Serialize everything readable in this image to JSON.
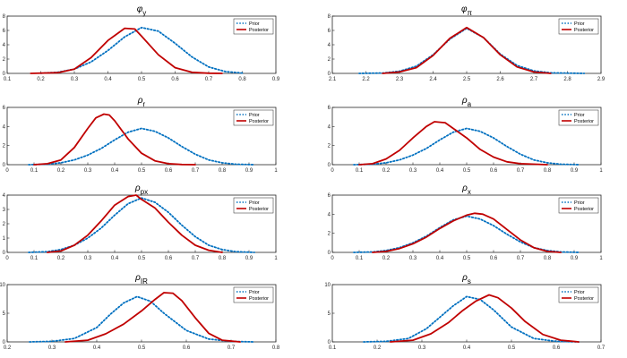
{
  "legend_labels": {
    "prior": "Prior",
    "posterior": "Posterior"
  },
  "colors": {
    "prior": "#0070c0",
    "posterior": "#c00000",
    "axis": "#262626",
    "background": "#ffffff"
  },
  "chart_data": [
    {
      "type": "line",
      "title": "φy",
      "title_main": "φ",
      "title_sub": "y",
      "xlim": [
        0.1,
        0.9
      ],
      "xticks": [
        "0.1",
        "0.2",
        "0.3",
        "0.4",
        "0.5",
        "0.6",
        "0.7",
        "0.8",
        "0.9"
      ],
      "ylim": [
        0,
        8
      ],
      "yticks": [
        "0",
        "2",
        "4",
        "6",
        "8"
      ],
      "legend_position": "top-right",
      "grid": false,
      "series": [
        {
          "name": "Prior",
          "style": "dotted",
          "x": [
            0.2,
            0.25,
            0.3,
            0.35,
            0.4,
            0.45,
            0.5,
            0.55,
            0.6,
            0.65,
            0.7,
            0.75,
            0.8
          ],
          "y": [
            0.02,
            0.15,
            0.6,
            1.6,
            3.2,
            5.1,
            6.4,
            5.9,
            4.2,
            2.3,
            0.9,
            0.25,
            0.05
          ]
        },
        {
          "name": "Posterior",
          "style": "solid",
          "x": [
            0.17,
            0.25,
            0.3,
            0.35,
            0.4,
            0.45,
            0.48,
            0.5,
            0.55,
            0.6,
            0.65,
            0.7,
            0.74
          ],
          "y": [
            0.0,
            0.1,
            0.6,
            2.2,
            4.6,
            6.3,
            6.2,
            5.2,
            2.6,
            0.8,
            0.15,
            0.03,
            0.0
          ]
        }
      ]
    },
    {
      "type": "line",
      "title": "φπ",
      "title_main": "φ",
      "title_sub": "π",
      "xlim": [
        2.1,
        2.9
      ],
      "xticks": [
        "2.1",
        "2.2",
        "2.3",
        "2.4",
        "2.5",
        "2.6",
        "2.7",
        "2.8",
        "2.9"
      ],
      "ylim": [
        0,
        8
      ],
      "yticks": [
        "0",
        "2",
        "4",
        "6",
        "8"
      ],
      "legend_position": "top-right",
      "grid": false,
      "series": [
        {
          "name": "Prior",
          "style": "dotted",
          "x": [
            2.18,
            2.25,
            2.3,
            2.35,
            2.4,
            2.45,
            2.5,
            2.55,
            2.6,
            2.65,
            2.7,
            2.75,
            2.85
          ],
          "y": [
            0.0,
            0.05,
            0.3,
            1.0,
            2.6,
            4.8,
            6.3,
            5.0,
            2.7,
            1.1,
            0.35,
            0.08,
            0.0
          ]
        },
        {
          "name": "Posterior",
          "style": "solid",
          "x": [
            2.25,
            2.3,
            2.35,
            2.4,
            2.45,
            2.5,
            2.55,
            2.6,
            2.65,
            2.7,
            2.75
          ],
          "y": [
            0.0,
            0.2,
            0.8,
            2.5,
            4.9,
            6.4,
            5.0,
            2.6,
            0.9,
            0.2,
            0.0
          ]
        }
      ]
    },
    {
      "type": "line",
      "title": "ρr",
      "title_main": "ρ",
      "title_sub": "r",
      "xlim": [
        0,
        1
      ],
      "xticks": [
        "0",
        "0.1",
        "0.2",
        "0.3",
        "0.4",
        "0.5",
        "0.6",
        "0.7",
        "0.8",
        "0.9",
        "1"
      ],
      "ylim": [
        0,
        6
      ],
      "yticks": [
        "0",
        "2",
        "4",
        "6"
      ],
      "legend_position": "top-right",
      "grid": false,
      "series": [
        {
          "name": "Prior",
          "style": "dotted",
          "x": [
            0.08,
            0.15,
            0.2,
            0.25,
            0.3,
            0.35,
            0.4,
            0.45,
            0.5,
            0.55,
            0.6,
            0.65,
            0.7,
            0.75,
            0.8,
            0.85,
            0.92
          ],
          "y": [
            0.0,
            0.05,
            0.2,
            0.5,
            1.0,
            1.7,
            2.6,
            3.4,
            3.8,
            3.5,
            2.8,
            1.9,
            1.1,
            0.5,
            0.2,
            0.05,
            0.0
          ]
        },
        {
          "name": "Posterior",
          "style": "solid",
          "x": [
            0.1,
            0.15,
            0.2,
            0.25,
            0.3,
            0.33,
            0.36,
            0.38,
            0.4,
            0.45,
            0.5,
            0.55,
            0.6,
            0.65,
            0.7
          ],
          "y": [
            0.0,
            0.1,
            0.5,
            1.8,
            3.8,
            4.9,
            5.3,
            5.2,
            4.6,
            2.7,
            1.2,
            0.4,
            0.1,
            0.02,
            0.0
          ]
        }
      ]
    },
    {
      "type": "line",
      "title": "ρa",
      "title_main": "ρ",
      "title_sub": "a",
      "xlim": [
        0,
        1
      ],
      "xticks": [
        "0",
        "0.1",
        "0.2",
        "0.3",
        "0.4",
        "0.5",
        "0.6",
        "0.7",
        "0.8",
        "0.9",
        "1"
      ],
      "ylim": [
        0,
        6
      ],
      "yticks": [
        "0",
        "2",
        "4",
        "6"
      ],
      "legend_position": "top-right",
      "grid": false,
      "series": [
        {
          "name": "Prior",
          "style": "dotted",
          "x": [
            0.08,
            0.15,
            0.2,
            0.25,
            0.3,
            0.35,
            0.4,
            0.45,
            0.5,
            0.55,
            0.6,
            0.65,
            0.7,
            0.75,
            0.8,
            0.85,
            0.92
          ],
          "y": [
            0.0,
            0.05,
            0.2,
            0.5,
            1.0,
            1.7,
            2.6,
            3.4,
            3.8,
            3.5,
            2.8,
            1.9,
            1.1,
            0.5,
            0.2,
            0.05,
            0.0
          ]
        },
        {
          "name": "Posterior",
          "style": "solid",
          "x": [
            0.1,
            0.15,
            0.2,
            0.25,
            0.3,
            0.35,
            0.38,
            0.42,
            0.45,
            0.5,
            0.55,
            0.6,
            0.65,
            0.7,
            0.8
          ],
          "y": [
            0.0,
            0.1,
            0.6,
            1.5,
            2.8,
            4.0,
            4.5,
            4.4,
            3.8,
            2.8,
            1.6,
            0.8,
            0.3,
            0.1,
            0.0
          ]
        }
      ]
    },
    {
      "type": "line",
      "title": "ρpx",
      "title_main": "ρ",
      "title_sub": "px",
      "xlim": [
        0,
        1
      ],
      "xticks": [
        "0",
        "0.1",
        "0.2",
        "0.3",
        "0.4",
        "0.5",
        "0.6",
        "0.7",
        "0.8",
        "0.9",
        "1"
      ],
      "ylim": [
        0,
        4
      ],
      "yticks": [
        "0",
        "1",
        "2",
        "3",
        "4"
      ],
      "legend_position": "top-right",
      "grid": false,
      "series": [
        {
          "name": "Prior",
          "style": "dotted",
          "x": [
            0.08,
            0.15,
            0.2,
            0.25,
            0.3,
            0.35,
            0.4,
            0.45,
            0.5,
            0.55,
            0.6,
            0.65,
            0.7,
            0.75,
            0.8,
            0.85,
            0.92
          ],
          "y": [
            0.0,
            0.05,
            0.2,
            0.5,
            1.0,
            1.7,
            2.6,
            3.4,
            3.8,
            3.5,
            2.8,
            1.9,
            1.1,
            0.5,
            0.2,
            0.05,
            0.0
          ]
        },
        {
          "name": "Posterior",
          "style": "solid",
          "x": [
            0.15,
            0.2,
            0.25,
            0.3,
            0.35,
            0.4,
            0.45,
            0.48,
            0.5,
            0.55,
            0.6,
            0.65,
            0.7,
            0.75,
            0.8
          ],
          "y": [
            0.0,
            0.1,
            0.5,
            1.2,
            2.2,
            3.3,
            3.9,
            4.0,
            3.7,
            3.1,
            2.1,
            1.2,
            0.5,
            0.15,
            0.0
          ]
        }
      ]
    },
    {
      "type": "line",
      "title": "ρx",
      "title_main": "ρ",
      "title_sub": "x",
      "xlim": [
        0,
        1
      ],
      "xticks": [
        "0",
        "0.1",
        "0.2",
        "0.3",
        "0.4",
        "0.5",
        "0.6",
        "0.7",
        "0.8",
        "0.9",
        "1"
      ],
      "ylim": [
        0,
        6
      ],
      "yticks": [
        "0",
        "2",
        "4",
        "6"
      ],
      "legend_position": "top-right",
      "grid": false,
      "series": [
        {
          "name": "Prior",
          "style": "dotted",
          "x": [
            0.08,
            0.15,
            0.2,
            0.25,
            0.3,
            0.35,
            0.4,
            0.45,
            0.5,
            0.55,
            0.6,
            0.65,
            0.7,
            0.75,
            0.8,
            0.85,
            0.92
          ],
          "y": [
            0.0,
            0.05,
            0.2,
            0.5,
            1.0,
            1.7,
            2.6,
            3.4,
            3.8,
            3.5,
            2.8,
            1.9,
            1.1,
            0.5,
            0.2,
            0.05,
            0.0
          ]
        },
        {
          "name": "Posterior",
          "style": "solid",
          "x": [
            0.15,
            0.2,
            0.25,
            0.3,
            0.35,
            0.4,
            0.45,
            0.5,
            0.53,
            0.56,
            0.6,
            0.65,
            0.7,
            0.75,
            0.8,
            0.85
          ],
          "y": [
            0.0,
            0.1,
            0.4,
            0.9,
            1.6,
            2.5,
            3.3,
            3.9,
            4.1,
            4.0,
            3.5,
            2.4,
            1.3,
            0.5,
            0.1,
            0.0
          ]
        }
      ]
    },
    {
      "type": "line",
      "title": "ρIR",
      "title_main": "ρ",
      "title_sub": "IR",
      "xlim": [
        0.2,
        0.8
      ],
      "xticks": [
        "0.2",
        "0.3",
        "0.4",
        "0.5",
        "0.6",
        "0.7",
        "0.8"
      ],
      "ylim": [
        0,
        10
      ],
      "yticks": [
        "0",
        "5",
        "10"
      ],
      "legend_position": "top-right",
      "grid": false,
      "series": [
        {
          "name": "Prior",
          "style": "dotted",
          "x": [
            0.25,
            0.3,
            0.35,
            0.4,
            0.43,
            0.46,
            0.49,
            0.52,
            0.55,
            0.6,
            0.65,
            0.7,
            0.75
          ],
          "y": [
            0.0,
            0.1,
            0.6,
            2.5,
            4.8,
            6.8,
            7.9,
            7.1,
            5.0,
            2.0,
            0.5,
            0.1,
            0.0
          ]
        },
        {
          "name": "Posterior",
          "style": "solid",
          "x": [
            0.33,
            0.38,
            0.42,
            0.46,
            0.5,
            0.53,
            0.55,
            0.57,
            0.59,
            0.62,
            0.65,
            0.68,
            0.72
          ],
          "y": [
            0.0,
            0.3,
            1.4,
            3.1,
            5.4,
            7.4,
            8.6,
            8.5,
            7.2,
            4.2,
            1.5,
            0.3,
            0.0
          ]
        }
      ]
    },
    {
      "type": "line",
      "title": "ρs",
      "title_main": "ρ",
      "title_sub": "s",
      "xlim": [
        0.1,
        0.7
      ],
      "xticks": [
        "0.1",
        "0.2",
        "0.3",
        "0.4",
        "0.5",
        "0.6",
        "0.7"
      ],
      "ylim": [
        0,
        10
      ],
      "yticks": [
        "0",
        "5",
        "10"
      ],
      "legend_position": "top-right",
      "grid": false,
      "series": [
        {
          "name": "Prior",
          "style": "dotted",
          "x": [
            0.17,
            0.22,
            0.27,
            0.31,
            0.34,
            0.37,
            0.4,
            0.43,
            0.46,
            0.5,
            0.55,
            0.6,
            0.65
          ],
          "y": [
            0.0,
            0.1,
            0.6,
            2.3,
            4.3,
            6.3,
            7.9,
            7.4,
            5.6,
            2.6,
            0.6,
            0.1,
            0.0
          ]
        },
        {
          "name": "Posterior",
          "style": "solid",
          "x": [
            0.23,
            0.28,
            0.32,
            0.36,
            0.39,
            0.42,
            0.45,
            0.47,
            0.5,
            0.53,
            0.57,
            0.61,
            0.65
          ],
          "y": [
            0.0,
            0.3,
            1.4,
            3.4,
            5.4,
            7.1,
            8.2,
            7.7,
            5.9,
            3.6,
            1.3,
            0.3,
            0.0
          ]
        }
      ]
    }
  ]
}
